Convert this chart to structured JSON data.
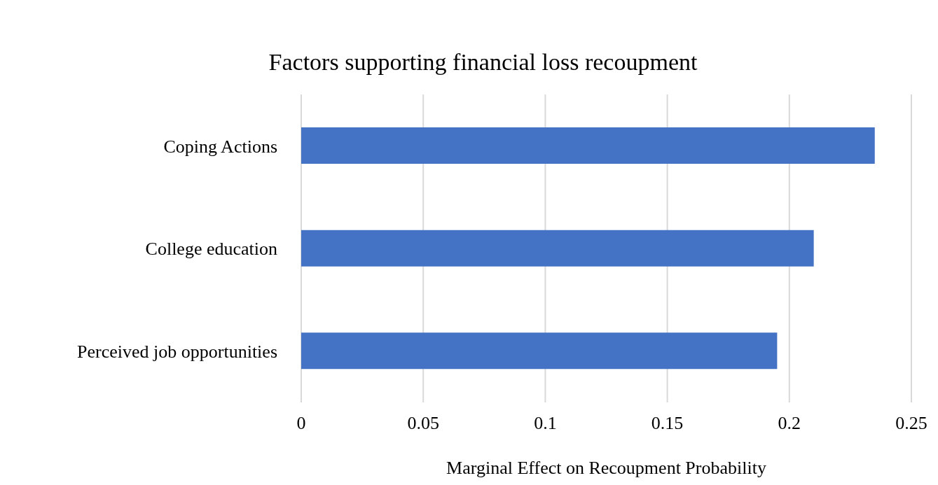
{
  "chart_data": {
    "type": "bar",
    "orientation": "horizontal",
    "title": "Factors supporting financial loss recoupment",
    "xlabel": "Marginal Effect on Recoupment Probability",
    "categories": [
      "Coping Actions",
      "College education",
      "Perceived job opportunities"
    ],
    "values": [
      0.235,
      0.21,
      0.195
    ],
    "color": "#4472c4",
    "xlim": [
      0,
      0.25
    ],
    "xticks": [
      0,
      0.05,
      0.1,
      0.15,
      0.2,
      0.25
    ],
    "grid": "x"
  }
}
